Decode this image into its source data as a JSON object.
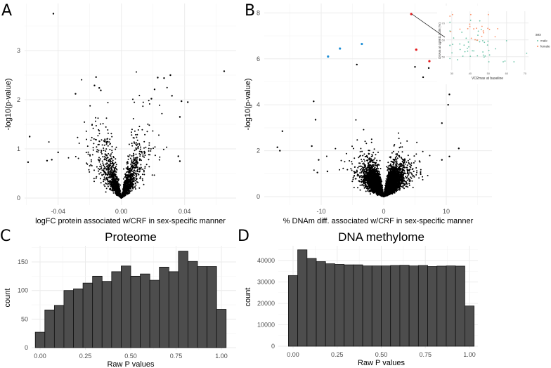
{
  "chart_data": [
    {
      "id": "A",
      "panel_label": "A",
      "type": "scatter",
      "title": "",
      "xlabel": "logFC protein associated w/CRF in sex-specific manner",
      "ylabel": "-log10(p-value)",
      "xticks": [
        -0.04,
        0.0,
        0.04
      ],
      "xtick_labels": [
        "-0.04",
        "0.00",
        "0.04"
      ],
      "yticks": [
        0,
        1,
        2,
        3
      ],
      "ytick_labels": [
        "0",
        "1",
        "2",
        "3"
      ],
      "xlim": [
        -0.06,
        0.068
      ],
      "ylim": [
        -0.1,
        3.9
      ],
      "bulk": {
        "n_points": 2000,
        "typical_se": 0.0065,
        "seed": 7
      },
      "outliers": [
        [
          -0.043,
          3.75
        ],
        [
          0.065,
          2.58
        ],
        [
          -0.058,
          1.25
        ],
        [
          -0.059,
          0.73
        ],
        [
          -0.016,
          2.46
        ],
        [
          -0.017,
          2.29
        ],
        [
          -0.014,
          2.24
        ],
        [
          -0.013,
          2.19
        ],
        [
          -0.029,
          2.12
        ],
        [
          0.023,
          2.45
        ],
        [
          0.027,
          2.44
        ],
        [
          0.031,
          2.5
        ],
        [
          0.032,
          2.08
        ],
        [
          0.038,
          1.97
        ],
        [
          0.042,
          1.95
        ],
        [
          0.037,
          1.65
        ],
        [
          0.021,
          2.21
        ],
        [
          0.019,
          2.02
        ],
        [
          0.037,
          0.75
        ],
        [
          0.036,
          0.85
        ],
        [
          -0.04,
          0.93
        ],
        [
          -0.044,
          0.78
        ],
        [
          -0.047,
          0.76
        ]
      ]
    },
    {
      "id": "B",
      "panel_label": "B",
      "type": "scatter",
      "title": "",
      "xlabel": "% DNAm diff. associated w/CRF in sex-specific manner",
      "ylabel": "-log10(p-value)",
      "xticks": [
        -10,
        0,
        10
      ],
      "xtick_labels": [
        "-10",
        "0",
        "10"
      ],
      "yticks": [
        0,
        2,
        4,
        6,
        8
      ],
      "ytick_labels": [
        "0",
        "2",
        "4",
        "6",
        "8"
      ],
      "xlim": [
        -18,
        16.5
      ],
      "ylim": [
        -0.2,
        8.3
      ],
      "bulk": {
        "n_points": 14000,
        "typical_se": 1.1,
        "seed": 11
      },
      "highlight_colors": {
        "positive": "#e41a1c",
        "negative": "#1f8fd6"
      },
      "highlighted_positive": [
        [
          4.4,
          7.95
        ],
        [
          5.2,
          6.4
        ],
        [
          7.3,
          5.9
        ]
      ],
      "highlighted_negative": [
        [
          -8.9,
          6.1
        ],
        [
          -7.0,
          6.45
        ],
        [
          -3.5,
          6.65
        ]
      ],
      "outliers": [
        [
          -17.0,
          2.15
        ],
        [
          -16.6,
          2.0
        ],
        [
          -16.2,
          2.85
        ],
        [
          10.5,
          4.45
        ],
        [
          10.3,
          4.0
        ],
        [
          12.0,
          2.1
        ],
        [
          9.3,
          3.2
        ],
        [
          9.3,
          1.6
        ],
        [
          10.5,
          1.75
        ],
        [
          -11.5,
          2.2
        ],
        [
          -11.2,
          4.15
        ],
        [
          -10.6,
          1.05
        ],
        [
          -10.4,
          1.6
        ],
        [
          -9.0,
          1.1
        ],
        [
          -10.9,
          3.35
        ],
        [
          -4.3,
          5.75
        ],
        [
          6.3,
          5.2
        ],
        [
          7.2,
          5.6
        ],
        [
          5.0,
          5.65
        ]
      ],
      "inset": {
        "type": "scatter",
        "xlabel": "VO2max at baseline",
        "ylabel": "DNAm at cg06111036 (%)",
        "xticks": [
          "30",
          "40",
          "50",
          "60",
          "70"
        ],
        "yticks": [
          "50",
          "60",
          "70"
        ],
        "xlim": [
          27,
          72
        ],
        "ylim": [
          42,
          77
        ],
        "legend_title": "sex",
        "legend": [
          {
            "name": "male",
            "color": "#66c2a5"
          },
          {
            "name": "female",
            "color": "#fc8d62"
          }
        ],
        "seed": 3,
        "n_male": 48,
        "n_female": 22
      }
    },
    {
      "id": "C",
      "panel_label": "C",
      "type": "bar",
      "title": "Proteome",
      "xlabel": "Raw P values",
      "ylabel": "count",
      "xticks": [
        "0.00",
        "0.25",
        "0.50",
        "0.75",
        "1.00"
      ],
      "yticks": [
        "0",
        "50",
        "100",
        "150"
      ],
      "ylim": [
        0,
        180
      ],
      "bin_range": [
        -0.0263,
        1.0263
      ],
      "values": [
        27,
        66,
        74,
        100,
        103,
        113,
        125,
        116,
        133,
        143,
        125,
        129,
        118,
        141,
        133,
        169,
        151,
        142,
        142,
        67
      ]
    },
    {
      "id": "D",
      "panel_label": "D",
      "type": "bar",
      "title": "DNA methylome",
      "xlabel": "Raw P values",
      "ylabel": "count",
      "xticks": [
        "0.00",
        "0.25",
        "0.50",
        "0.75",
        "1.00"
      ],
      "yticks": [
        "0",
        "10000",
        "20000",
        "30000",
        "40000"
      ],
      "ylim": [
        0,
        47000
      ],
      "bin_range": [
        -0.0263,
        1.0263
      ],
      "values": [
        33000,
        45000,
        41000,
        39500,
        38500,
        38200,
        38000,
        38000,
        37500,
        37500,
        37500,
        37700,
        37800,
        37500,
        37700,
        37200,
        37400,
        37500,
        37400,
        18800
      ]
    }
  ]
}
